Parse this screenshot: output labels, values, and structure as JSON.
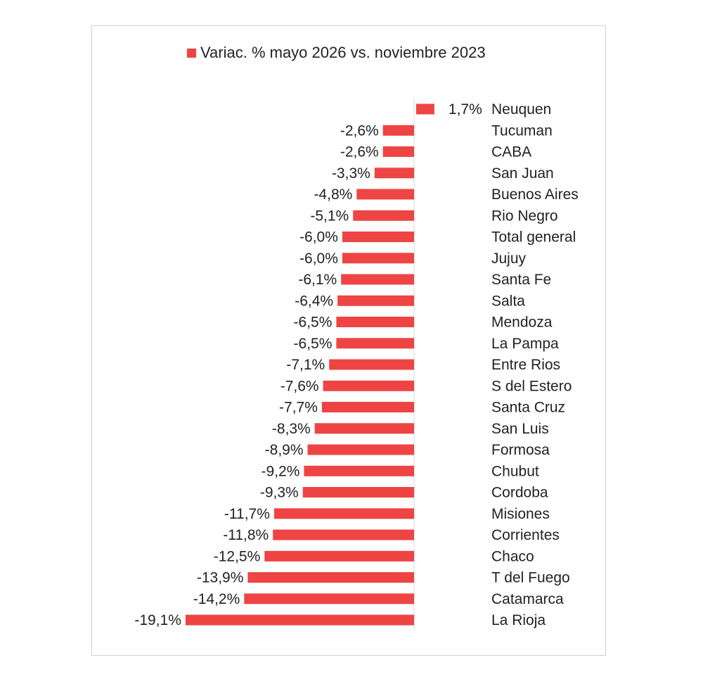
{
  "chart_data": {
    "type": "bar",
    "orientation": "horizontal",
    "legend": {
      "label": "Variac. % mayo 2026 vs. noviembre 2023",
      "position": "top"
    },
    "color": "#ef4444",
    "grid": false,
    "xlim": [
      -20,
      2
    ],
    "series": [
      {
        "name": "Variac. % mayo 2026 vs. noviembre 2023",
        "categories": [
          "Neuquen",
          "Tucuman",
          "CABA",
          "San Juan",
          "Buenos Aires",
          "Rio Negro",
          "Total general",
          "Jujuy",
          "Santa Fe",
          "Salta",
          "Mendoza",
          "La Pampa",
          "Entre Rios",
          "S del Estero",
          "Santa Cruz",
          "San Luis",
          "Formosa",
          "Chubut",
          "Cordoba",
          "Misiones",
          "Corrientes",
          "Chaco",
          "T del Fuego",
          "Catamarca",
          "La Rioja"
        ],
        "values": [
          1.7,
          -2.6,
          -2.6,
          -3.3,
          -4.8,
          -5.1,
          -6.0,
          -6.0,
          -6.1,
          -6.4,
          -6.5,
          -6.5,
          -7.1,
          -7.6,
          -7.7,
          -8.3,
          -8.9,
          -9.2,
          -9.3,
          -11.7,
          -11.8,
          -12.5,
          -13.9,
          -14.2,
          -19.1
        ],
        "labels": [
          "1,7%",
          "-2,6%",
          "-2,6%",
          "-3,3%",
          "-4,8%",
          "-5,1%",
          "-6,0%",
          "-6,0%",
          "-6,1%",
          "-6,4%",
          "-6,5%",
          "-6,5%",
          "-7,1%",
          "-7,6%",
          "-7,7%",
          "-8,3%",
          "-8,9%",
          "-9,2%",
          "-9,3%",
          "-11,7%",
          "-11,8%",
          "-12,5%",
          "-13,9%",
          "-14,2%",
          "-19,1%"
        ]
      }
    ]
  }
}
